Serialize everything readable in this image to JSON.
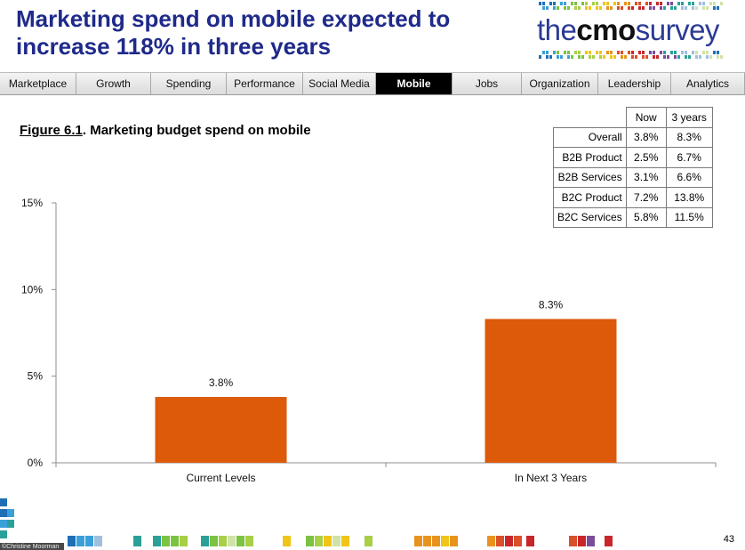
{
  "header": {
    "title_line1": "Marketing spend on mobile expected to",
    "title_line2": "increase 118% in three years",
    "logo_light1": "the",
    "logo_bold": "cmo",
    "logo_light2": "survey"
  },
  "nav": {
    "items": [
      {
        "label": "Marketplace"
      },
      {
        "label": "Growth"
      },
      {
        "label": "Spending"
      },
      {
        "label": "Performance"
      },
      {
        "label": "Social Media"
      },
      {
        "label": "Mobile"
      },
      {
        "label": "Jobs"
      },
      {
        "label": "Organization"
      },
      {
        "label": "Leadership"
      },
      {
        "label": "Analytics"
      }
    ],
    "active": "Mobile"
  },
  "figure": {
    "number": "Figure 6.1",
    "caption": ". Marketing budget spend on mobile"
  },
  "table": {
    "headers": [
      "",
      "Now",
      "3 years"
    ],
    "rows": [
      [
        "Overall",
        "3.8%",
        "8.3%"
      ],
      [
        "B2B Product",
        "2.5%",
        "6.7%"
      ],
      [
        "B2B Services",
        "3.1%",
        "6.6%"
      ],
      [
        "B2C Product",
        "7.2%",
        "13.8%"
      ],
      [
        "B2C Services",
        "5.8%",
        "11.5%"
      ]
    ]
  },
  "chart_data": {
    "type": "bar",
    "categories": [
      "Current Levels",
      "In Next 3 Years"
    ],
    "values": [
      3.8,
      8.3
    ],
    "data_labels": [
      "3.8%",
      "8.3%"
    ],
    "ylim": [
      0,
      15
    ],
    "yticks": [
      0,
      5,
      10,
      15
    ],
    "ytick_labels": [
      "0%",
      "5%",
      "10%",
      "15%"
    ],
    "bar_color": "#dc5a0a",
    "grid": false,
    "legend": "none"
  },
  "footer": {
    "credit": "©Christine Moorman",
    "page_number": "43"
  }
}
